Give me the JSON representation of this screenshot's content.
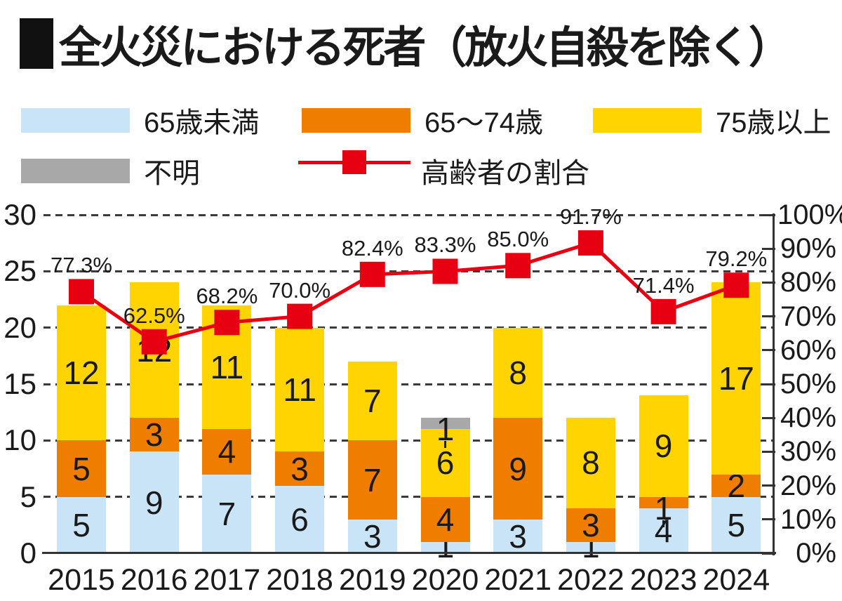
{
  "title": {
    "text": "全火災における死者（放火自殺を除く）"
  },
  "legend": {
    "items": [
      {
        "label": "65歳未満",
        "color": "#c8e4f6",
        "type": "box"
      },
      {
        "label": "65〜74歳",
        "color": "#ee7d00",
        "type": "box"
      },
      {
        "label": "75歳以上",
        "color": "#ffd400",
        "type": "box"
      },
      {
        "label": "不明",
        "color": "#a8a8a8",
        "type": "box"
      },
      {
        "label": "高齢者の割合",
        "color": "#e60012",
        "type": "line"
      }
    ]
  },
  "chart_data": {
    "type": "bar",
    "subtype": "stacked-bars-with-percentage-line",
    "title": "全火災における死者（放火自殺を除く）",
    "categories": [
      "2015",
      "2016",
      "2017",
      "2018",
      "2019",
      "2020",
      "2021",
      "2022",
      "2023",
      "2024"
    ],
    "series": [
      {
        "name": "65歳未満",
        "color": "#c8e4f6",
        "values": [
          5,
          9,
          7,
          6,
          3,
          1,
          3,
          1,
          4,
          5
        ]
      },
      {
        "name": "65〜74歳",
        "color": "#ee7d00",
        "values": [
          5,
          3,
          4,
          3,
          7,
          4,
          9,
          3,
          1,
          2
        ]
      },
      {
        "name": "75歳以上",
        "color": "#ffd400",
        "values": [
          12,
          12,
          11,
          11,
          7,
          6,
          8,
          8,
          9,
          17
        ]
      },
      {
        "name": "不明",
        "color": "#a8a8a8",
        "values": [
          0,
          0,
          0,
          0,
          0,
          1,
          0,
          0,
          0,
          0
        ]
      }
    ],
    "line_series": {
      "name": "高齢者の割合",
      "color": "#e60012",
      "values": [
        77.3,
        62.5,
        68.2,
        70.0,
        82.4,
        83.3,
        85.0,
        91.7,
        71.4,
        79.2
      ],
      "labels": [
        "77.3%",
        "62.5%",
        "68.2%",
        "70.0%",
        "82.4%",
        "83.3%",
        "85.0%",
        "91.7%",
        "71.4%",
        "79.2%"
      ]
    },
    "left_axis": {
      "min": 0,
      "max": 30,
      "step": 5,
      "labels": [
        "0",
        "5",
        "10",
        "15",
        "20",
        "25",
        "30"
      ]
    },
    "right_axis": {
      "min": 0,
      "max": 100,
      "step": 10,
      "labels": [
        "0%",
        "10%",
        "20%",
        "30%",
        "40%",
        "50%",
        "60%",
        "70%",
        "80%",
        "90%",
        "100%"
      ]
    },
    "grid": "dashed horizontal lines at left-axis steps of 5",
    "legend_position": "top",
    "axis_color": "#333333",
    "text_color": "#1a1a1a"
  }
}
